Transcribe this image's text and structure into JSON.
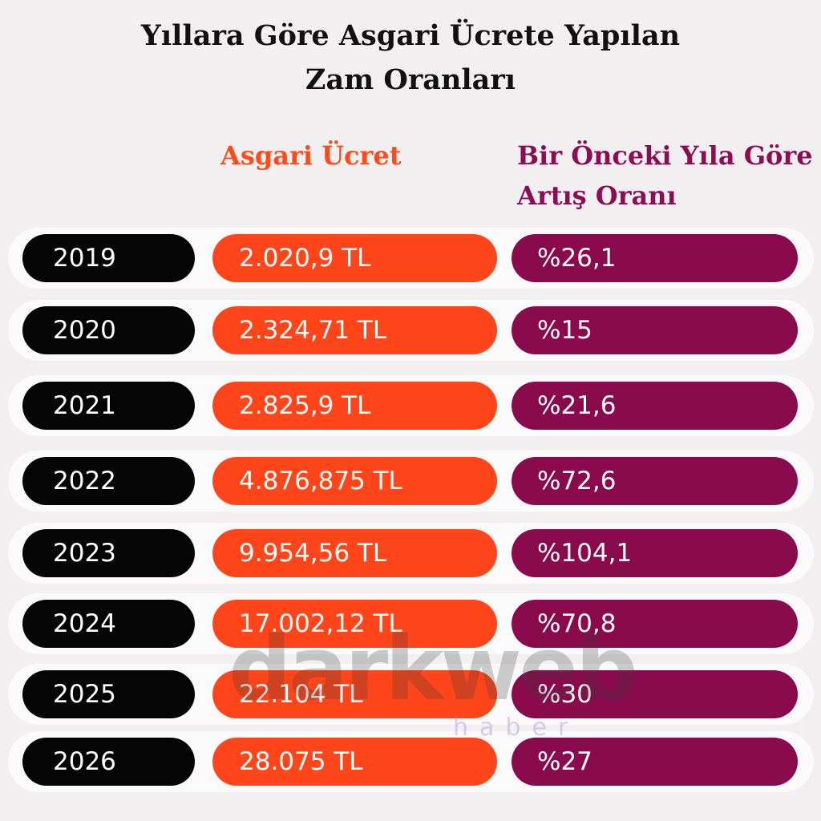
{
  "header": {
    "title": [
      "Yıllara Göre Asgari Ücrete Yapılan",
      "Zam Oranları"
    ]
  },
  "table": {
    "columns": [
      [
        "Asgari Ücret"
      ],
      [
        "Bir Önceki Yıla Göre",
        "Artış Oranı"
      ]
    ],
    "rows": [
      [
        "2019",
        "2.020,9 TL",
        "%26,1"
      ],
      [
        "2020",
        "2.324,71 TL",
        "%15"
      ],
      [
        "2021",
        "2.825,9 TL",
        "%21,6"
      ],
      [
        "2022",
        "4.876,875 TL",
        "%72,6"
      ],
      [
        "2023",
        "9.954,56 TL",
        "%104,1"
      ],
      [
        "2024",
        "17.002,12 TL",
        "%70,8"
      ],
      [
        "2025",
        "22.104 TL",
        "%30"
      ],
      [
        "2026",
        "28.075 TL",
        "%27"
      ]
    ]
  },
  "watermark": {
    "brand": "darkweb",
    "sub": "haber"
  }
}
